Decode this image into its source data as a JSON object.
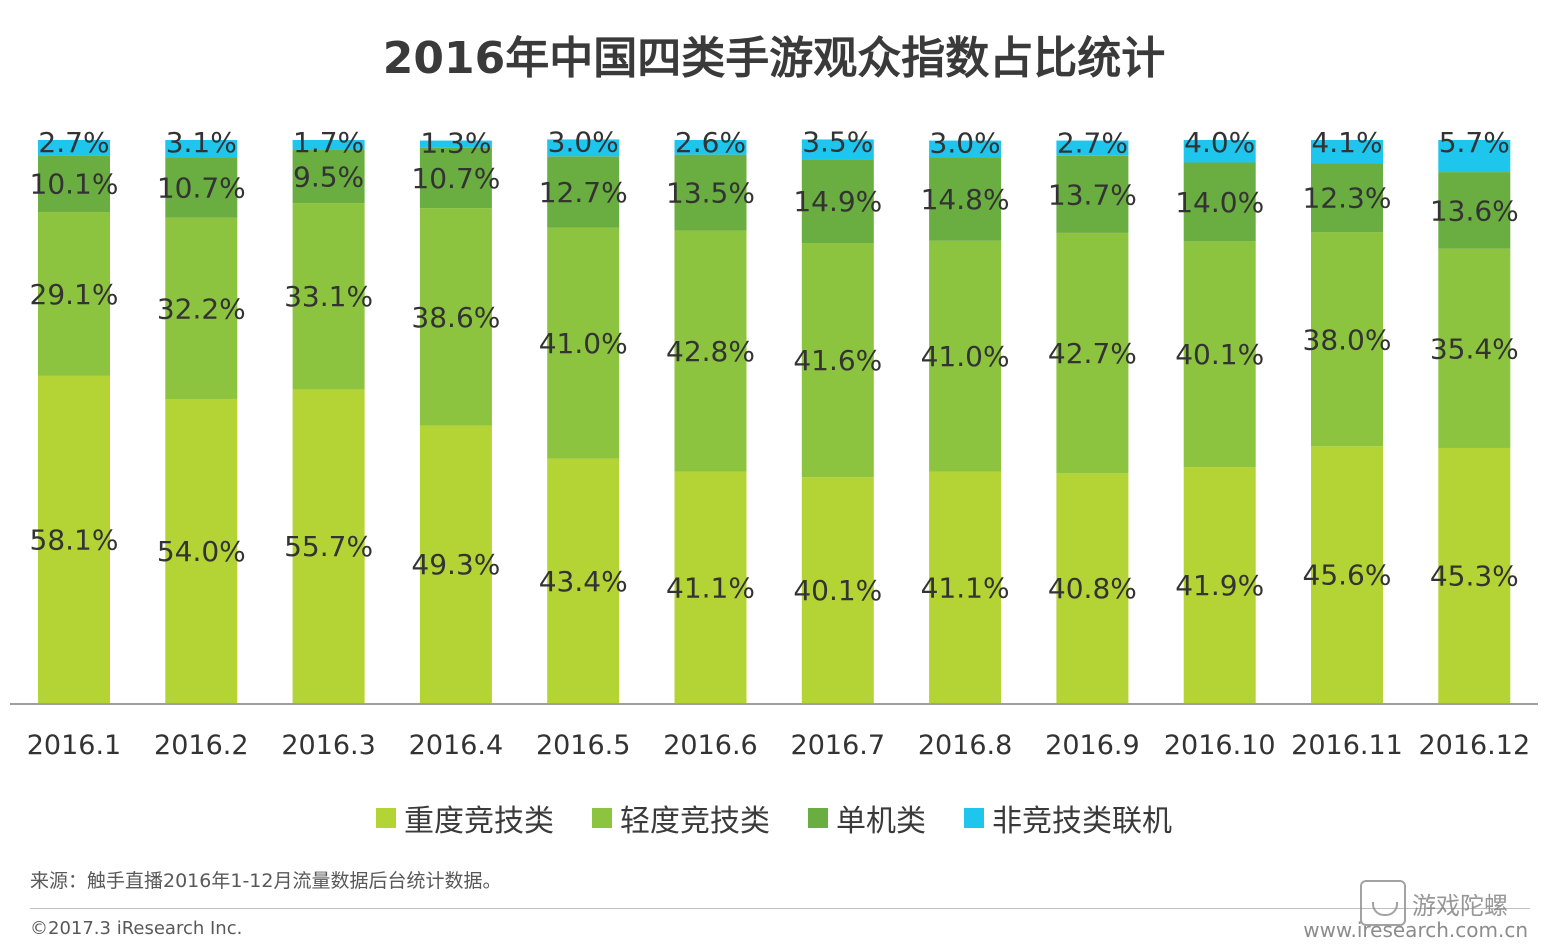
{
  "chart_data": {
    "type": "bar",
    "stacked": true,
    "title": "2016年中国四类手游观众指数占比统计",
    "categories": [
      "2016.1",
      "2016.2",
      "2016.3",
      "2016.4",
      "2016.5",
      "2016.6",
      "2016.7",
      "2016.8",
      "2016.9",
      "2016.10",
      "2016.11",
      "2016.12"
    ],
    "series": [
      {
        "name": "重度竞技类",
        "color": "#b4d334",
        "values": [
          58.1,
          54.0,
          55.7,
          49.3,
          43.4,
          41.1,
          40.1,
          41.1,
          40.8,
          41.9,
          45.6,
          45.3
        ]
      },
      {
        "name": "轻度竞技类",
        "color": "#8cc43f",
        "values": [
          29.1,
          32.2,
          33.1,
          38.6,
          41.0,
          42.8,
          41.6,
          41.0,
          42.7,
          40.1,
          38.0,
          35.4
        ]
      },
      {
        "name": "单机类",
        "color": "#6aad40",
        "values": [
          10.1,
          10.7,
          9.5,
          10.7,
          12.7,
          13.5,
          14.9,
          14.8,
          13.7,
          14.0,
          12.3,
          13.6
        ]
      },
      {
        "name": "非竞技类联机",
        "color": "#1ec6ee",
        "values": [
          2.7,
          3.1,
          1.7,
          1.3,
          3.0,
          2.6,
          3.5,
          3.0,
          2.7,
          4.0,
          4.1,
          5.7
        ]
      }
    ],
    "value_suffix": "%",
    "ylim": [
      0,
      100
    ],
    "grid": false,
    "legend_position": "bottom"
  },
  "source_note": "来源：触手直播2016年1-12月流量数据后台统计数据。",
  "copyright": "©2017.3 iResearch Inc.",
  "website": "www.iresearch.com.cn",
  "watermark": "游戏陀螺"
}
